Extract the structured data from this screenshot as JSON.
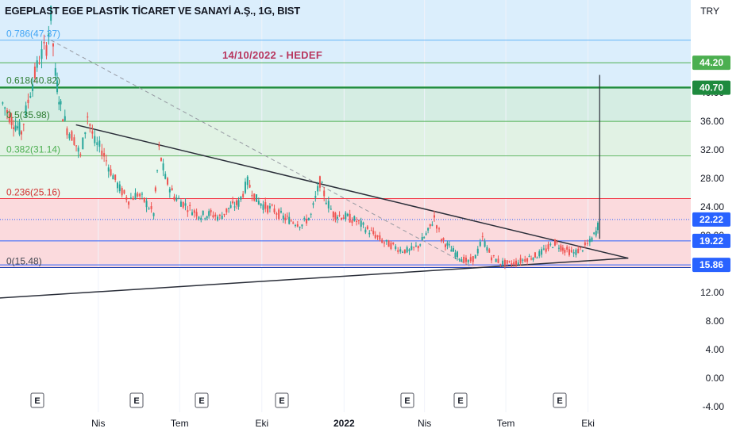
{
  "header": {
    "title": "EGEPLAST EGE PLASTİK TİCARET VE SANAYİ A.Ş., 1G, BIST",
    "currency": "TRY",
    "annotation": "14/10/2022  -  HEDEF"
  },
  "chart_data": {
    "type": "candlestick",
    "title": "EGEPLAST EGE PLASTİK TİCARET VE SANAYİ A.Ş., 1G, BIST",
    "currency": "TRY",
    "ylim": [
      -4.8,
      53
    ],
    "y_ticks": [
      "-4.00",
      "0.00",
      "4.00",
      "8.00",
      "12.00",
      "16.00",
      "20.00",
      "24.00",
      "28.00",
      "32.00",
      "36.00",
      "40.00"
    ],
    "y_tick_values": [
      -4,
      0,
      4,
      8,
      12,
      16,
      20,
      24,
      28,
      32,
      36,
      40
    ],
    "x_ticks": [
      {
        "label": "Nis",
        "date": "2021-04"
      },
      {
        "label": "Tem",
        "date": "2021-07"
      },
      {
        "label": "Eki",
        "date": "2021-10"
      },
      {
        "label": "2022",
        "date": "2022-01"
      },
      {
        "label": "Nis",
        "date": "2022-04"
      },
      {
        "label": "Tem",
        "date": "2022-07"
      },
      {
        "label": "Eki",
        "date": "2022-10"
      }
    ],
    "fib_levels": [
      {
        "label": "0.786(47.37)",
        "value": 47.37
      },
      {
        "label": "0.618(40.82)",
        "value": 40.82
      },
      {
        "label": "0.5(35.98)",
        "value": 35.98
      },
      {
        "label": "0.382(31.14)",
        "value": 31.14
      },
      {
        "label": "0.236(25.16)",
        "value": 25.16
      },
      {
        "label": "0(15.48)",
        "value": 15.48
      }
    ],
    "price_badges": [
      {
        "label": "44.20",
        "value": 44.2,
        "color": "#4caf50"
      },
      {
        "label": "40.70",
        "value": 40.7,
        "color": "#1e8a3e"
      },
      {
        "label": "22.22",
        "value": 22.22,
        "color": "#2962ff"
      },
      {
        "label": "19.22",
        "value": 19.22,
        "color": "#2962ff"
      },
      {
        "label": "15.86",
        "value": 15.86,
        "color": "#2962ff"
      }
    ],
    "earnings_label": "E",
    "earnings_dates": [
      "2021-03-05",
      "2021-05-25",
      "2021-08-15",
      "2021-11-05",
      "2022-03-01",
      "2022-05-10",
      "2022-08-20"
    ],
    "target_line": {
      "from": 19.5,
      "to": 42.5,
      "date": "2022-10-14"
    },
    "trendlines": [
      {
        "name": "upper",
        "from": {
          "date": "2021-03-07",
          "value": 35.5
        },
        "to": {
          "date": "2022-11-15",
          "value": 16.8
        }
      },
      {
        "name": "lower",
        "from": {
          "date": "2020-12-10",
          "value": 11.2
        },
        "to": {
          "date": "2022-11-15",
          "value": 16.8
        }
      }
    ],
    "fib_anchor": {
      "from": {
        "date": "2021-02-07",
        "value": 47.37
      },
      "to": {
        "date": "2022-05-25",
        "value": 15.48
      }
    },
    "series_close": [
      [
        "2020-12-15",
        38.5
      ],
      [
        "2020-12-25",
        36.2
      ],
      [
        "2021-01-05",
        34.5
      ],
      [
        "2021-01-15",
        40.2
      ],
      [
        "2021-01-25",
        44.8
      ],
      [
        "2021-02-02",
        46.5
      ],
      [
        "2021-02-07",
        50.8
      ],
      [
        "2021-02-12",
        42.5
      ],
      [
        "2021-02-18",
        38.0
      ],
      [
        "2021-02-25",
        35.0
      ],
      [
        "2021-03-05",
        33.5
      ],
      [
        "2021-03-12",
        31.0
      ],
      [
        "2021-03-20",
        36.8
      ],
      [
        "2021-03-28",
        33.0
      ],
      [
        "2021-04-05",
        32.0
      ],
      [
        "2021-04-15",
        29.0
      ],
      [
        "2021-04-25",
        26.5
      ],
      [
        "2021-05-05",
        25.0
      ],
      [
        "2021-05-15",
        25.8
      ],
      [
        "2021-05-25",
        24.5
      ],
      [
        "2021-06-02",
        23.0
      ],
      [
        "2021-06-08",
        32.0
      ],
      [
        "2021-06-15",
        28.0
      ],
      [
        "2021-06-25",
        25.5
      ],
      [
        "2021-07-05",
        24.5
      ],
      [
        "2021-07-15",
        23.5
      ],
      [
        "2021-07-25",
        22.8
      ],
      [
        "2021-08-05",
        23.0
      ],
      [
        "2021-08-15",
        22.5
      ],
      [
        "2021-08-25",
        23.8
      ],
      [
        "2021-09-05",
        24.5
      ],
      [
        "2021-09-15",
        27.5
      ],
      [
        "2021-09-25",
        25.0
      ],
      [
        "2021-10-05",
        24.0
      ],
      [
        "2021-10-15",
        23.5
      ],
      [
        "2021-10-25",
        22.5
      ],
      [
        "2021-11-05",
        22.0
      ],
      [
        "2021-11-15",
        21.5
      ],
      [
        "2021-11-25",
        22.8
      ],
      [
        "2021-12-05",
        27.5
      ],
      [
        "2021-12-12",
        25.0
      ],
      [
        "2021-12-20",
        23.0
      ],
      [
        "2022-01-05",
        22.5
      ],
      [
        "2022-01-15",
        22.0
      ],
      [
        "2022-01-25",
        21.0
      ],
      [
        "2022-02-05",
        20.0
      ],
      [
        "2022-02-15",
        19.0
      ],
      [
        "2022-02-25",
        18.5
      ],
      [
        "2022-03-05",
        18.0
      ],
      [
        "2022-03-15",
        17.8
      ],
      [
        "2022-03-25",
        18.5
      ],
      [
        "2022-04-05",
        20.5
      ],
      [
        "2022-04-12",
        22.5
      ],
      [
        "2022-04-20",
        19.5
      ],
      [
        "2022-05-01",
        18.0
      ],
      [
        "2022-05-10",
        17.0
      ],
      [
        "2022-05-20",
        16.2
      ],
      [
        "2022-05-28",
        17.0
      ],
      [
        "2022-06-05",
        19.5
      ],
      [
        "2022-06-15",
        17.0
      ],
      [
        "2022-06-25",
        16.2
      ],
      [
        "2022-07-05",
        16.0
      ],
      [
        "2022-07-15",
        16.3
      ],
      [
        "2022-07-25",
        16.8
      ],
      [
        "2022-08-05",
        17.2
      ],
      [
        "2022-08-15",
        18.0
      ],
      [
        "2022-08-25",
        19.0
      ],
      [
        "2022-09-05",
        18.0
      ],
      [
        "2022-09-15",
        17.5
      ],
      [
        "2022-09-25",
        18.2
      ],
      [
        "2022-10-03",
        19.0
      ],
      [
        "2022-10-10",
        20.5
      ],
      [
        "2022-10-14",
        22.2
      ]
    ]
  }
}
